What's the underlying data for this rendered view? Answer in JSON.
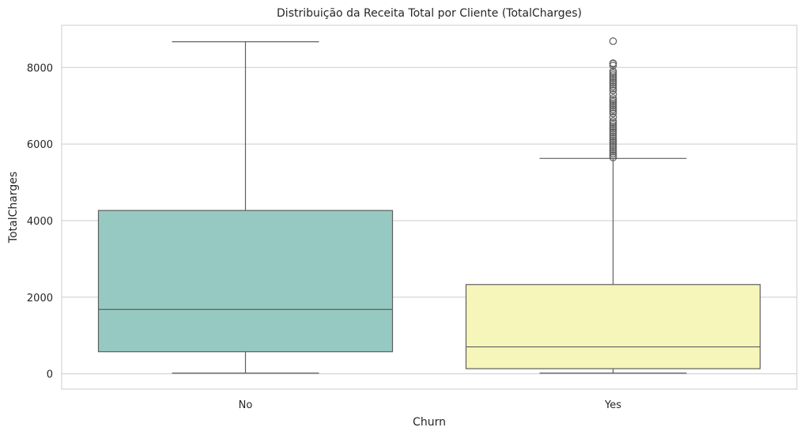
{
  "chart_data": {
    "type": "boxplot",
    "title": "Distribuição da Receita Total por Cliente (TotalCharges)",
    "xlabel": "Churn",
    "ylabel": "TotalCharges",
    "ylim": [
      -400,
      9100
    ],
    "yticks": [
      0,
      2000,
      4000,
      6000,
      8000
    ],
    "grid": true,
    "categories": [
      "No",
      "Yes"
    ],
    "boxes": [
      {
        "category": "No",
        "color": "#96c9c1",
        "whisker_low": 18.8,
        "q1": 577,
        "median": 1680,
        "q3": 4265,
        "whisker_high": 8672,
        "outliers": []
      },
      {
        "category": "Yes",
        "color": "#f6f6bb",
        "whisker_low": 18.9,
        "q1": 134,
        "median": 704,
        "q3": 2331,
        "whisker_high": 5624,
        "outliers": [
          5650,
          5700,
          5750,
          5800,
          5850,
          5900,
          5950,
          6000,
          6050,
          6100,
          6150,
          6200,
          6250,
          6300,
          6350,
          6400,
          6450,
          6500,
          6550,
          6600,
          6700,
          6800,
          6850,
          6900,
          6950,
          7000,
          7050,
          7100,
          7150,
          7200,
          7300,
          7400,
          7450,
          7500,
          7550,
          7600,
          7650,
          7700,
          7750,
          7800,
          7850,
          7900,
          8050,
          8100,
          8110,
          8685
        ]
      }
    ]
  }
}
